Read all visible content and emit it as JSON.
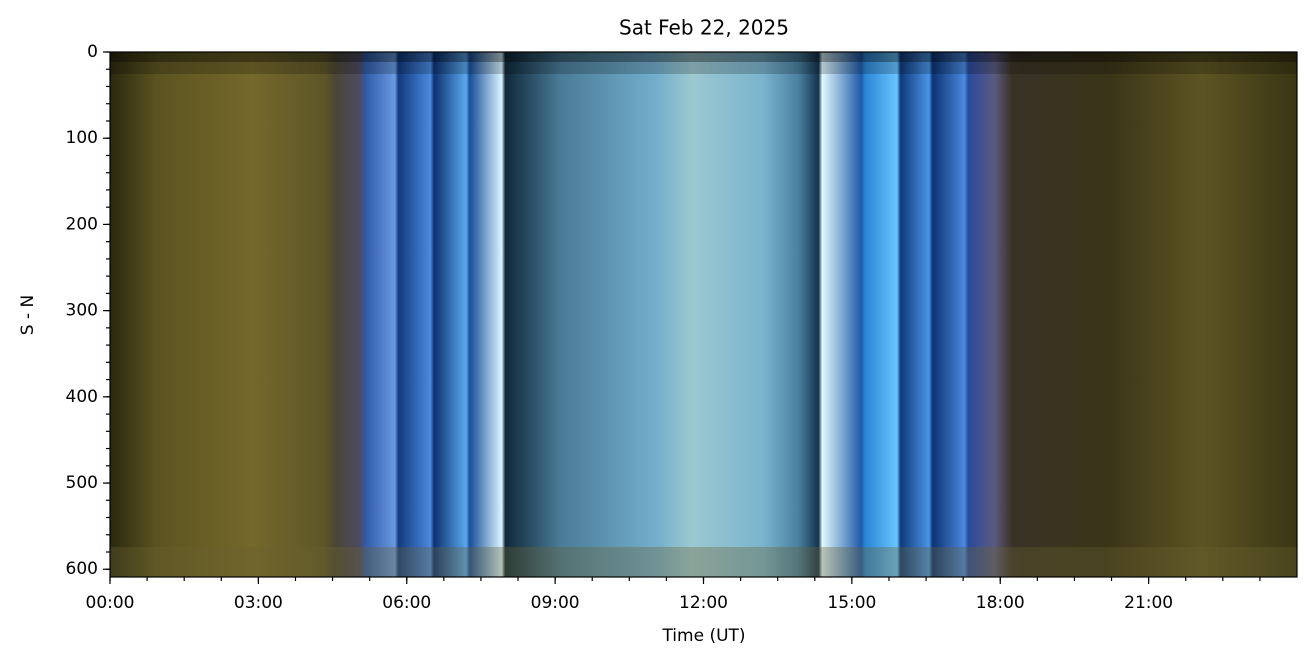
{
  "chart_data": {
    "type": "image",
    "title": "Sat Feb 22, 2025",
    "x_label": "Time (UT)",
    "y_label": "S - N",
    "xlim": [
      0,
      24
    ],
    "ylim": [
      609,
      0
    ],
    "xticks": [
      {
        "value": 0,
        "label": "00:00"
      },
      {
        "value": 3,
        "label": "03:00"
      },
      {
        "value": 6,
        "label": "06:00"
      },
      {
        "value": 9,
        "label": "09:00"
      },
      {
        "value": 12,
        "label": "12:00"
      },
      {
        "value": 15,
        "label": "15:00"
      },
      {
        "value": 18,
        "label": "18:00"
      },
      {
        "value": 21,
        "label": "21:00"
      }
    ],
    "yticks": [
      0,
      100,
      200,
      300,
      400,
      500,
      600
    ],
    "x_minor_divisions": 4,
    "y_minor_divisions": 5
  }
}
